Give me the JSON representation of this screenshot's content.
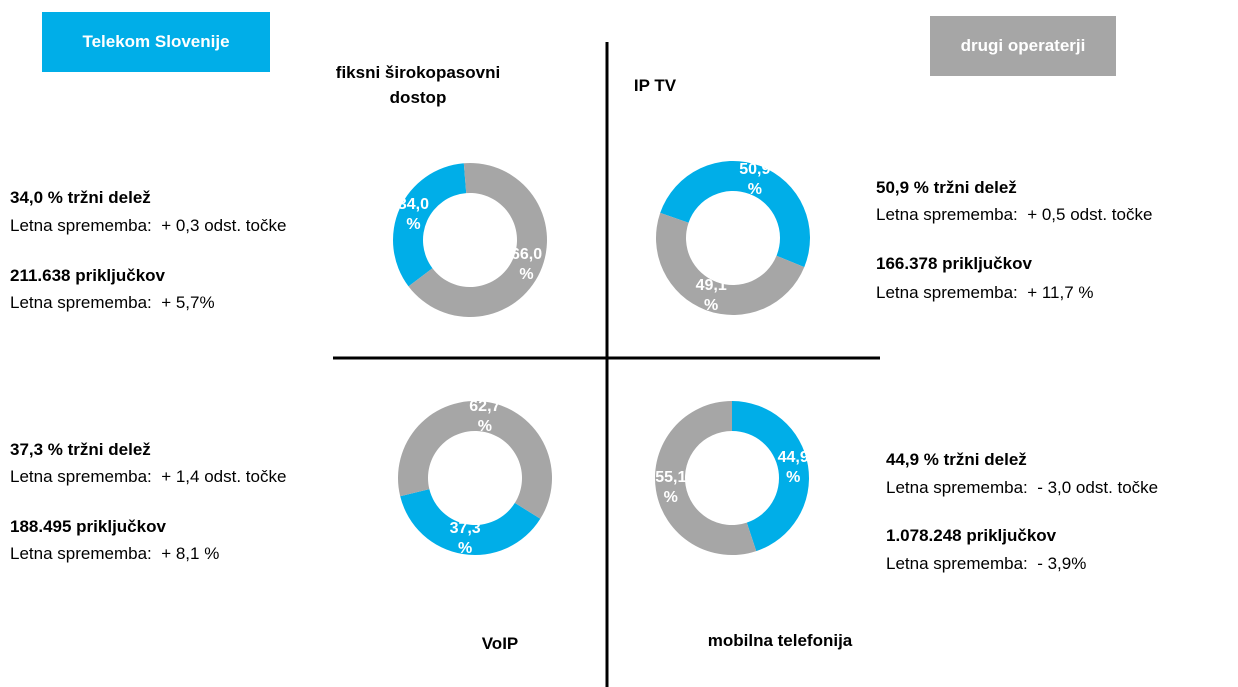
{
  "legend": {
    "names": [
      "Telekom Slovenije",
      "drugi operaterji"
    ],
    "colors": [
      "#00aee8",
      "#a6a6a6"
    ]
  },
  "chart_data": [
    {
      "type": "pie",
      "title": "fiksni širokopasovni dostop",
      "values": [
        34.0,
        66.0
      ],
      "value_labels": [
        "34,0 %",
        "66,0 %"
      ],
      "annotations": [
        "34,0 % tržni delež",
        "Letna sprememba:  + 0,3 odst. točke",
        "211.638 priključkov",
        "Letna sprememba:  + 5,7%"
      ]
    },
    {
      "type": "pie",
      "title": "IP TV",
      "values": [
        50.9,
        49.1
      ],
      "value_labels": [
        "50,9 %",
        "49,1 %"
      ],
      "annotations": [
        "50,9 % tržni delež",
        "Letna sprememba:  + 0,5 odst. točke",
        "166.378 priključkov",
        "Letna sprememba:  + 11,7 %"
      ]
    },
    {
      "type": "pie",
      "title": "VoIP",
      "values": [
        37.3,
        62.7
      ],
      "value_labels": [
        "37,3 %",
        "62,7 %"
      ],
      "annotations": [
        "37,3 % tržni delež",
        "Letna sprememba:  + 1,4 odst. točke",
        "188.495 priključkov",
        "Letna sprememba:  + 8,1 %"
      ]
    },
    {
      "type": "pie",
      "title": "mobilna telefonija",
      "values": [
        44.9,
        55.1
      ],
      "value_labels": [
        "44,9 %",
        "55,1 %"
      ],
      "annotations": [
        "44,9 % tržni delež",
        "Letna sprememba:  - 3,0 odst. točke",
        "1.078.248 priključkov",
        "Letna sprememba:  - 3,9%"
      ]
    }
  ]
}
